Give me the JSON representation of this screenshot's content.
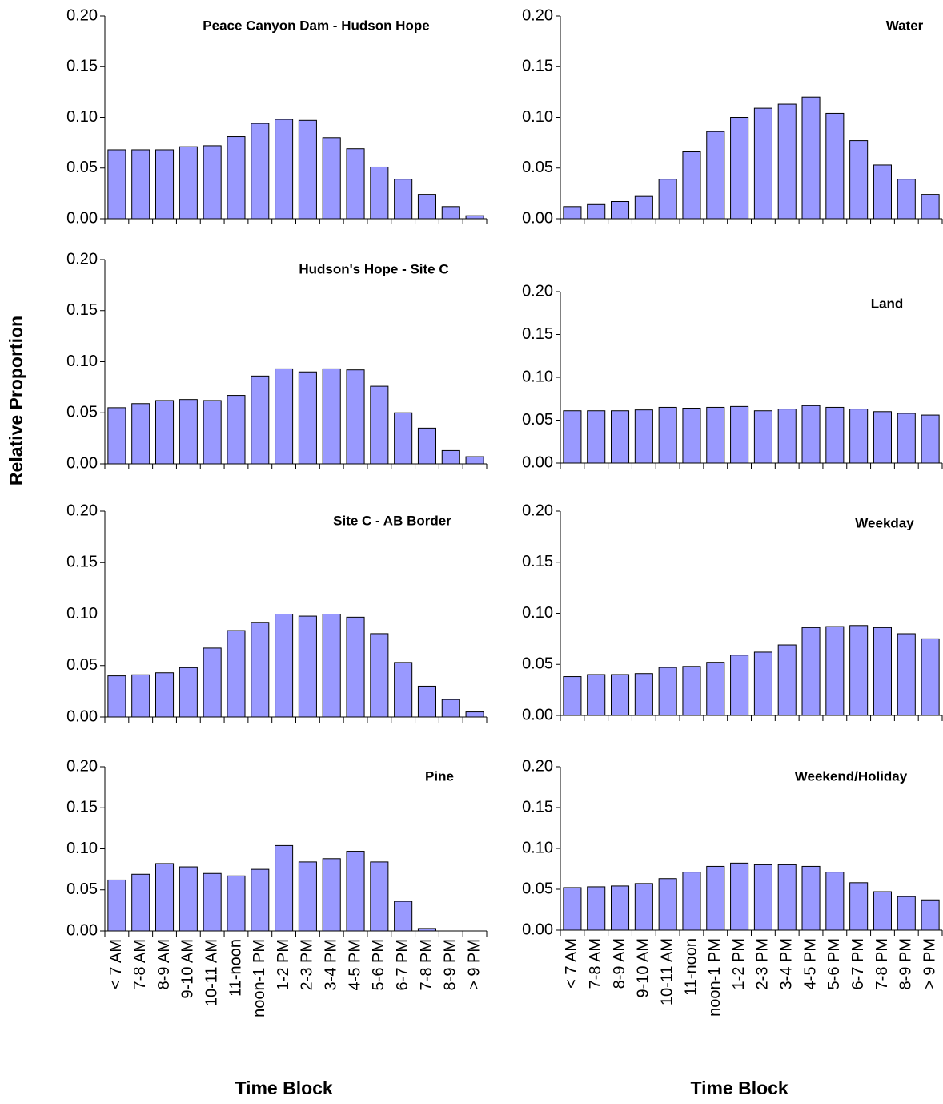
{
  "chart_data": [
    {
      "type": "bar",
      "title": "Peace Canyon Dam - Hudson Hope",
      "ylabel": "Relative Proportion",
      "color": "#9999ff",
      "values": [
        0.068,
        0.068,
        0.068,
        0.071,
        0.072,
        0.081,
        0.094,
        0.098,
        0.097,
        0.08,
        0.069,
        0.051,
        0.039,
        0.024,
        0.012,
        0.003
      ],
      "ylim": [
        0,
        0.2
      ],
      "yticks": [
        {
          "value": 0,
          "label": "0.00"
        },
        {
          "value": 0.05,
          "label": "0.05"
        },
        {
          "value": 0.1,
          "label": "0.10"
        },
        {
          "value": 0.15,
          "label": "0.15"
        },
        {
          "value": 0.2,
          "label": "0.20"
        }
      ]
    },
    {
      "type": "bar",
      "title": "Water",
      "color": "#9999ff",
      "values": [
        0.012,
        0.014,
        0.017,
        0.022,
        0.039,
        0.066,
        0.086,
        0.1,
        0.109,
        0.113,
        0.12,
        0.104,
        0.077,
        0.053,
        0.039,
        0.024
      ],
      "ylim": [
        0,
        0.2
      ],
      "yticks": [
        {
          "value": 0,
          "label": "0.00"
        },
        {
          "value": 0.05,
          "label": "0.05"
        },
        {
          "value": 0.1,
          "label": "0.10"
        },
        {
          "value": 0.15,
          "label": "0.15"
        },
        {
          "value": 0.2,
          "label": "0.20"
        }
      ]
    },
    {
      "type": "bar",
      "title": "Hudson's Hope - Site C",
      "color": "#9999ff",
      "values": [
        0.055,
        0.059,
        0.062,
        0.063,
        0.062,
        0.067,
        0.086,
        0.093,
        0.09,
        0.093,
        0.092,
        0.076,
        0.05,
        0.035,
        0.013,
        0.007
      ],
      "ylim": [
        0,
        0.2
      ],
      "yticks": [
        {
          "value": 0,
          "label": "0.00"
        },
        {
          "value": 0.05,
          "label": "0.05"
        },
        {
          "value": 0.1,
          "label": "0.10"
        },
        {
          "value": 0.15,
          "label": "0.15"
        },
        {
          "value": 0.2,
          "label": "0.20"
        }
      ]
    },
    {
      "type": "bar",
      "title": "Land",
      "color": "#9999ff",
      "values": [
        0.061,
        0.061,
        0.061,
        0.062,
        0.065,
        0.064,
        0.065,
        0.066,
        0.061,
        0.063,
        0.067,
        0.065,
        0.063,
        0.06,
        0.058,
        0.056
      ],
      "ylim": [
        0,
        0.2
      ],
      "yticks": [
        {
          "value": 0,
          "label": "0.00"
        },
        {
          "value": 0.05,
          "label": "0.05"
        },
        {
          "value": 0.1,
          "label": "0.10"
        },
        {
          "value": 0.15,
          "label": "0.15"
        },
        {
          "value": 0.2,
          "label": "0.20"
        }
      ]
    },
    {
      "type": "bar",
      "title": "Site C - AB Border",
      "color": "#9999ff",
      "values": [
        0.04,
        0.041,
        0.043,
        0.048,
        0.067,
        0.084,
        0.092,
        0.1,
        0.098,
        0.1,
        0.097,
        0.081,
        0.053,
        0.03,
        0.017,
        0.005
      ],
      "ylim": [
        0,
        0.2
      ],
      "yticks": [
        {
          "value": 0,
          "label": "0.00"
        },
        {
          "value": 0.05,
          "label": "0.05"
        },
        {
          "value": 0.1,
          "label": "0.10"
        },
        {
          "value": 0.15,
          "label": "0.15"
        },
        {
          "value": 0.2,
          "label": "0.20"
        }
      ]
    },
    {
      "type": "bar",
      "title": "Weekday",
      "color": "#9999ff",
      "values": [
        0.038,
        0.04,
        0.04,
        0.041,
        0.047,
        0.048,
        0.052,
        0.059,
        0.062,
        0.069,
        0.086,
        0.087,
        0.088,
        0.086,
        0.08,
        0.075
      ],
      "ylim": [
        0,
        0.2
      ],
      "yticks": [
        {
          "value": 0,
          "label": "0.00"
        },
        {
          "value": 0.05,
          "label": "0.05"
        },
        {
          "value": 0.1,
          "label": "0.10"
        },
        {
          "value": 0.15,
          "label": "0.15"
        },
        {
          "value": 0.2,
          "label": "0.20"
        }
      ]
    },
    {
      "type": "bar",
      "title": "Pine",
      "xlabel": "Time Block",
      "color": "#9999ff",
      "categories": [
        "< 7 AM",
        "7-8 AM",
        "8-9 AM",
        "9-10 AM",
        "10-11 AM",
        "11-noon",
        "noon-1 PM",
        "1-2 PM",
        "2-3 PM",
        "3-4 PM",
        "4-5 PM",
        "5-6 PM",
        "6-7 PM",
        "7-8 PM",
        "8-9 PM",
        "> 9 PM"
      ],
      "values": [
        0.062,
        0.069,
        0.082,
        0.078,
        0.07,
        0.067,
        0.075,
        0.104,
        0.084,
        0.088,
        0.097,
        0.084,
        0.036,
        0.003,
        0,
        0
      ],
      "ylim": [
        0,
        0.2
      ],
      "yticks": [
        {
          "value": 0,
          "label": "0.00"
        },
        {
          "value": 0.05,
          "label": "0.05"
        },
        {
          "value": 0.1,
          "label": "0.10"
        },
        {
          "value": 0.15,
          "label": "0.15"
        },
        {
          "value": 0.2,
          "label": "0.20"
        }
      ]
    },
    {
      "type": "bar",
      "title": "Weekend/Holiday",
      "xlabel": "Time Block",
      "color": "#9999ff",
      "categories": [
        "< 7 AM",
        "7-8 AM",
        "8-9 AM",
        "9-10 AM",
        "10-11 AM",
        "11-noon",
        "noon-1 PM",
        "1-2 PM",
        "2-3 PM",
        "3-4 PM",
        "4-5 PM",
        "5-6 PM",
        "6-7 PM",
        "7-8 PM",
        "8-9 PM",
        "> 9 PM"
      ],
      "values": [
        0.052,
        0.053,
        0.054,
        0.057,
        0.063,
        0.071,
        0.078,
        0.082,
        0.08,
        0.08,
        0.078,
        0.071,
        0.058,
        0.047,
        0.041,
        0.037
      ],
      "ylim": [
        0,
        0.2
      ],
      "yticks": [
        {
          "value": 0,
          "label": "0.00"
        },
        {
          "value": 0.05,
          "label": "0.05"
        },
        {
          "value": 0.1,
          "label": "0.10"
        },
        {
          "value": 0.15,
          "label": "0.15"
        },
        {
          "value": 0.2,
          "label": "0.20"
        }
      ]
    }
  ]
}
